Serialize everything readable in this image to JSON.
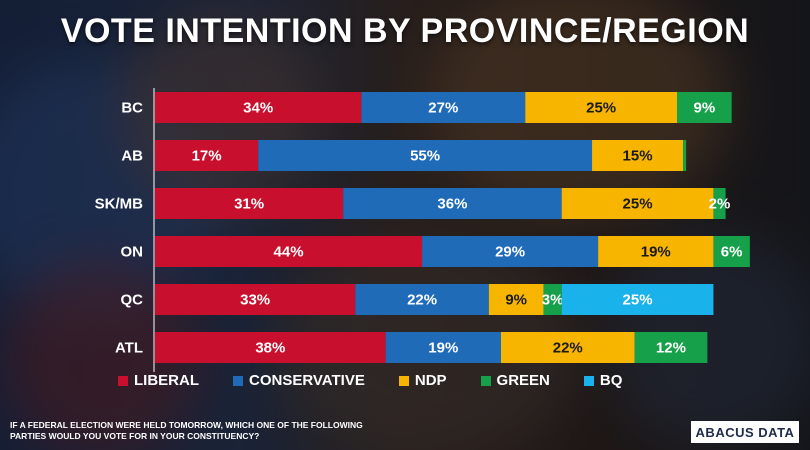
{
  "chart_data": {
    "type": "bar",
    "orientation": "horizontal",
    "stacked": true,
    "title": "VOTE INTENTION BY PROVINCE/REGION",
    "categories": [
      "BC",
      "AB",
      "SK/MB",
      "ON",
      "QC",
      "ATL"
    ],
    "xlim": [
      0,
      100
    ],
    "series": [
      {
        "name": "LIBERAL",
        "color": "#c8102e",
        "values": [
          34,
          17,
          31,
          44,
          33,
          38
        ]
      },
      {
        "name": "CONSERVATIVE",
        "color": "#1f6bb8",
        "values": [
          27,
          55,
          36,
          29,
          22,
          19
        ]
      },
      {
        "name": "NDP",
        "color": "#f7b500",
        "values": [
          25,
          15,
          25,
          19,
          9,
          22
        ]
      },
      {
        "name": "GREEN",
        "color": "#17a04a",
        "values": [
          9,
          0.5,
          2,
          6,
          3,
          12
        ]
      },
      {
        "name": "BQ",
        "color": "#19b2ea",
        "values": [
          0,
          0,
          0,
          0,
          25,
          0
        ]
      }
    ],
    "labels": [
      [
        "34%",
        "27%",
        "25%",
        "9%",
        ""
      ],
      [
        "17%",
        "55%",
        "15%",
        "",
        ""
      ],
      [
        "31%",
        "36%",
        "25%",
        "2%",
        ""
      ],
      [
        "44%",
        "29%",
        "19%",
        "6%",
        ""
      ],
      [
        "33%",
        "22%",
        "9%",
        "3%",
        "25%"
      ],
      [
        "38%",
        "19%",
        "22%",
        "12%",
        ""
      ]
    ],
    "grid": false,
    "legend_position": "bottom"
  },
  "footnote": "IF A FEDERAL ELECTION WERE HELD TOMORROW, WHICH ONE OF THE FOLLOWING PARTIES WOULD YOU VOTE FOR IN YOUR CONSTITUENCY?",
  "logo_text": "ABACUS DATA"
}
